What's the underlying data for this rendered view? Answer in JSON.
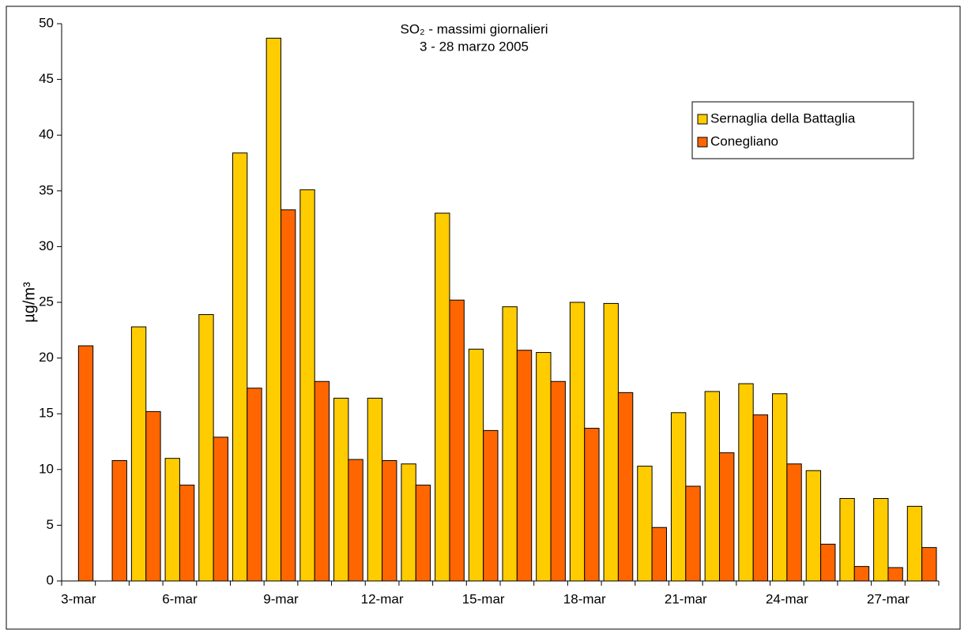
{
  "chart_data": {
    "type": "bar",
    "title": "SO₂ - massimi giornalieri",
    "subtitle": "3 - 28 marzo 2005",
    "y_label": "µg/m³",
    "categories": [
      "3-mar",
      null,
      null,
      "6-mar",
      null,
      null,
      "9-mar",
      null,
      null,
      "12-mar",
      null,
      null,
      "15-mar",
      null,
      null,
      "18-mar",
      null,
      null,
      "21-mar",
      null,
      null,
      "24-mar",
      null,
      null,
      "27-mar",
      null
    ],
    "series": [
      {
        "name": "Sernaglia della Battaglia",
        "color": "#ffcc00",
        "values": [
          null,
          null,
          22.8,
          11.0,
          23.9,
          38.4,
          48.7,
          35.1,
          16.4,
          16.4,
          10.5,
          33.0,
          20.8,
          24.6,
          20.5,
          25.0,
          24.9,
          10.3,
          15.1,
          17.0,
          17.7,
          16.8,
          9.9,
          7.4,
          7.4,
          6.7
        ]
      },
      {
        "name": "Conegliano",
        "color": "#ff6600",
        "values": [
          21.1,
          10.8,
          15.2,
          8.6,
          12.9,
          17.3,
          33.3,
          17.9,
          10.9,
          10.8,
          8.6,
          25.2,
          13.5,
          20.7,
          17.9,
          13.7,
          16.9,
          4.8,
          8.5,
          11.5,
          14.9,
          10.5,
          3.3,
          1.3,
          1.2,
          3.0
        ]
      }
    ],
    "ylim": [
      0,
      50
    ],
    "yticks": [
      0,
      5,
      10,
      15,
      20,
      25,
      30,
      35,
      40,
      45,
      50
    ],
    "grid": false,
    "legend": "upper right"
  }
}
